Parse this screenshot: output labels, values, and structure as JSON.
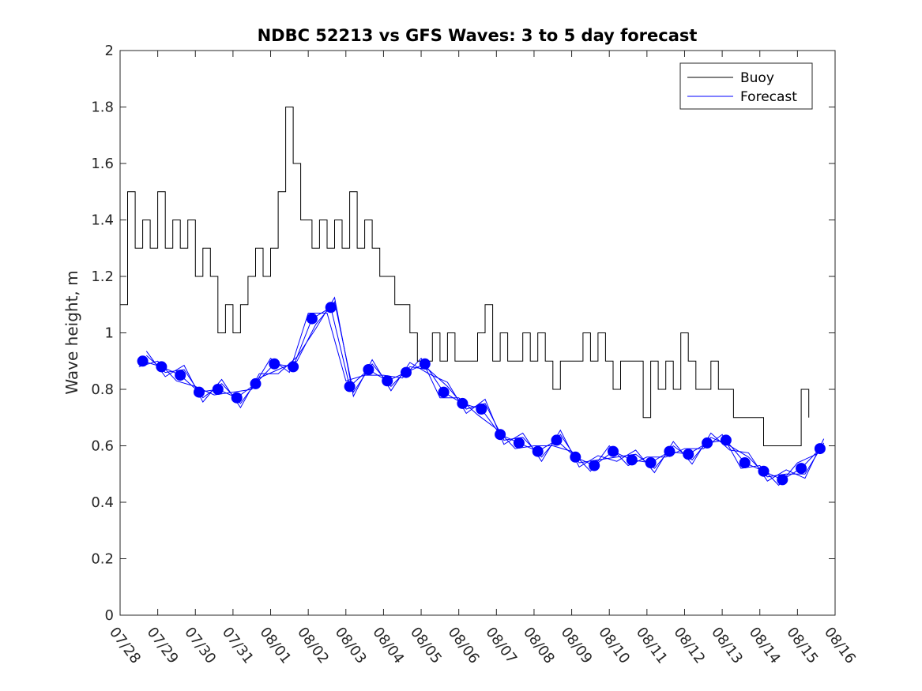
{
  "chart_data": {
    "type": "line",
    "title": "NDBC 52213 vs GFS Waves: 3 to 5 day forecast",
    "xlabel": "",
    "ylabel": "Wave height, m",
    "ylim": [
      0,
      2
    ],
    "yticks": [
      0,
      0.2,
      0.4,
      0.6,
      0.8,
      1,
      1.2,
      1.4,
      1.6,
      1.8,
      2
    ],
    "ytick_labels": [
      "0",
      "0.2",
      "0.4",
      "0.6",
      "0.8",
      "1",
      "1.2",
      "1.4",
      "1.6",
      "1.8",
      "2"
    ],
    "xlim_days": [
      0,
      19
    ],
    "xtick_labels": [
      "07/28",
      "07/29",
      "07/30",
      "07/31",
      "08/01",
      "08/02",
      "08/03",
      "08/04",
      "08/05",
      "08/06",
      "08/07",
      "08/08",
      "08/09",
      "08/10",
      "08/11",
      "08/12",
      "08/13",
      "08/14",
      "08/15",
      "08/16"
    ],
    "legend": {
      "position": "top-right",
      "entries": [
        "Buoy",
        "Forecast"
      ]
    },
    "series": [
      {
        "name": "Buoy",
        "color": "#000000",
        "x": [
          0.0,
          0.2,
          0.4,
          0.6,
          0.8,
          1.0,
          1.2,
          1.4,
          1.6,
          1.8,
          2.0,
          2.2,
          2.4,
          2.6,
          2.8,
          3.0,
          3.2,
          3.4,
          3.6,
          3.8,
          4.0,
          4.2,
          4.4,
          4.6,
          4.8,
          4.9,
          5.0,
          5.1,
          5.3,
          5.5,
          5.7,
          5.9,
          6.1,
          6.3,
          6.5,
          6.7,
          6.9,
          7.1,
          7.3,
          7.5,
          7.7,
          7.9,
          8.1,
          8.3,
          8.5,
          8.7,
          8.9,
          9.1,
          9.3,
          9.5,
          9.7,
          9.9,
          10.1,
          10.3,
          10.5,
          10.7,
          10.9,
          11.1,
          11.3,
          11.5,
          11.7,
          11.9,
          12.1,
          12.3,
          12.5,
          12.7,
          12.9,
          13.1,
          13.3,
          13.5,
          13.7,
          13.9,
          14.1,
          14.3,
          14.5,
          14.7,
          14.9,
          15.1,
          15.3,
          15.5,
          15.7,
          15.9,
          16.1,
          16.3,
          16.5,
          16.7,
          16.9,
          17.1,
          17.3,
          17.5,
          17.7,
          17.9,
          18.1,
          18.3
        ],
        "values": [
          1.1,
          1.5,
          1.3,
          1.4,
          1.3,
          1.5,
          1.3,
          1.4,
          1.3,
          1.4,
          1.2,
          1.3,
          1.2,
          1.0,
          1.1,
          1.0,
          1.1,
          1.2,
          1.3,
          1.2,
          1.3,
          1.5,
          1.8,
          1.6,
          1.4,
          1.4,
          1.4,
          1.3,
          1.4,
          1.3,
          1.4,
          1.3,
          1.5,
          1.3,
          1.4,
          1.3,
          1.2,
          1.2,
          1.1,
          1.1,
          1.0,
          0.9,
          0.9,
          1.0,
          0.9,
          1.0,
          0.9,
          0.9,
          0.9,
          1.0,
          1.1,
          0.9,
          1.0,
          0.9,
          0.9,
          1.0,
          0.9,
          1.0,
          0.9,
          0.8,
          0.9,
          0.9,
          0.9,
          1.0,
          0.9,
          1.0,
          0.9,
          0.8,
          0.9,
          0.9,
          0.9,
          0.7,
          0.9,
          0.8,
          0.9,
          0.8,
          1.0,
          0.9,
          0.8,
          0.8,
          0.9,
          0.8,
          0.8,
          0.7,
          0.7,
          0.7,
          0.7,
          0.6,
          0.6,
          0.6,
          0.6,
          0.6,
          0.8,
          0.7
        ]
      },
      {
        "name": "Forecast",
        "color": "#0000ff",
        "x": [
          0.6,
          1.1,
          1.6,
          2.1,
          2.6,
          3.1,
          3.6,
          4.1,
          4.6,
          5.1,
          5.6,
          6.1,
          6.6,
          7.1,
          7.6,
          8.1,
          8.6,
          9.1,
          9.6,
          10.1,
          10.6,
          11.1,
          11.6,
          12.1,
          12.6,
          13.1,
          13.6,
          14.1,
          14.6,
          15.1,
          15.6,
          16.1,
          16.6,
          17.1,
          17.6,
          18.1,
          18.6
        ],
        "values": [
          0.9,
          0.88,
          0.85,
          0.79,
          0.8,
          0.77,
          0.82,
          0.89,
          0.88,
          1.05,
          1.09,
          0.81,
          0.87,
          0.83,
          0.86,
          0.89,
          0.79,
          0.75,
          0.73,
          0.64,
          0.61,
          0.58,
          0.62,
          0.56,
          0.53,
          0.58,
          0.55,
          0.54,
          0.58,
          0.57,
          0.61,
          0.62,
          0.54,
          0.51,
          0.48,
          0.52,
          0.59
        ]
      }
    ]
  }
}
